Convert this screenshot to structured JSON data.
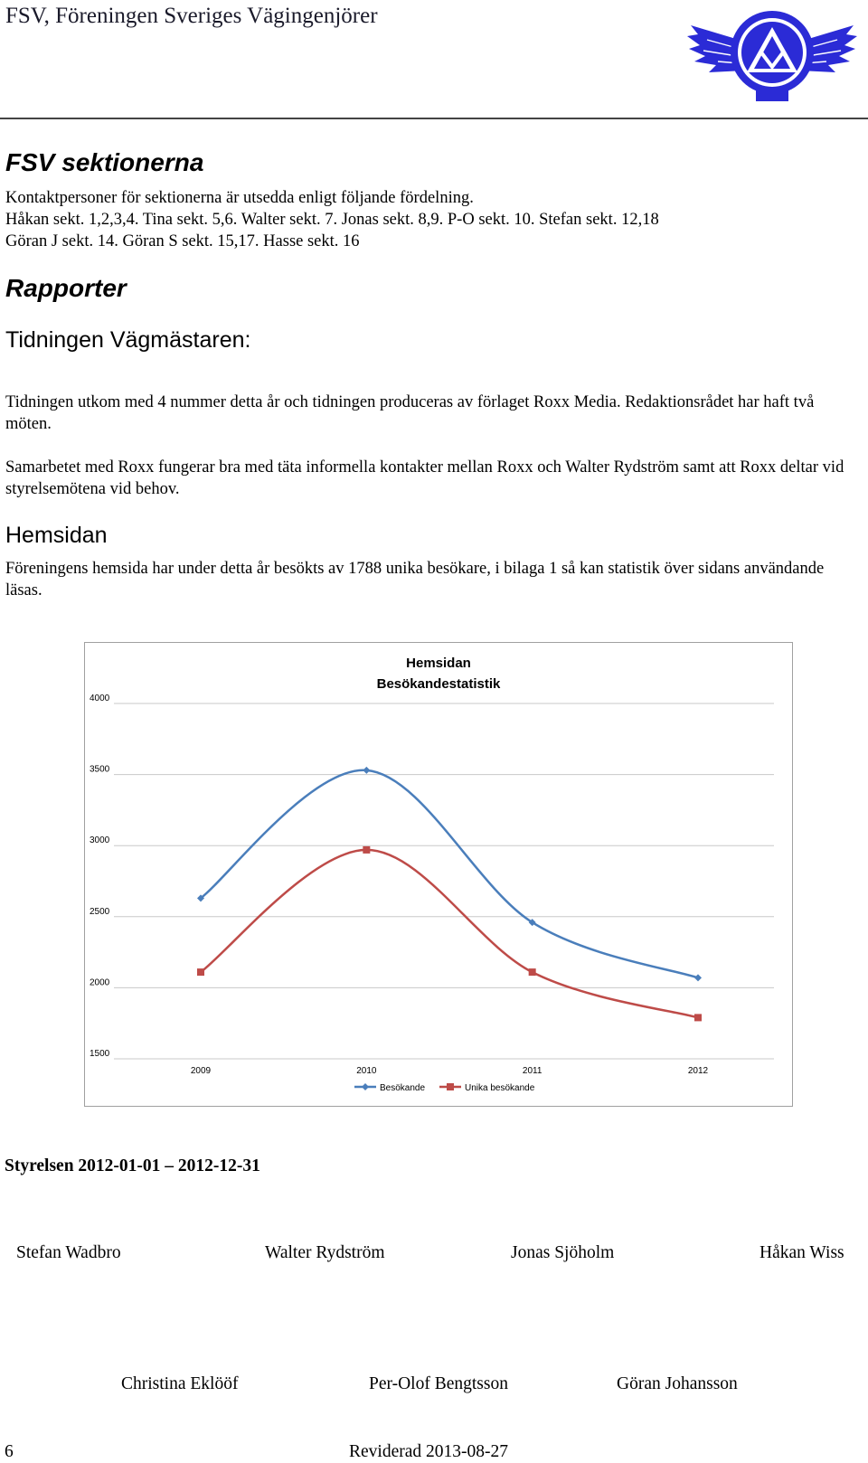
{
  "header": {
    "title": "FSV, Föreningen Sveriges Vägingenjörer"
  },
  "sections": {
    "heading": "FSV sektionerna",
    "lines": [
      "Kontaktpersoner för sektionerna är utsedda enligt följande fördelning.",
      "Håkan sekt. 1,2,3,4. Tina sekt. 5,6. Walter sekt. 7. Jonas sekt. 8,9. P-O sekt. 10. Stefan sekt. 12,18",
      "Göran J sekt. 14. Göran S sekt. 15,17. Hasse sekt. 16"
    ]
  },
  "rapporter": {
    "heading": "Rapporter",
    "subheading": "Tidningen Vägmästaren:",
    "para1": "Tidningen utkom med 4 nummer detta år och tidningen produceras av förlaget Roxx Media. Redaktionsrådet har haft två möten.",
    "para2": "Samarbetet med Roxx fungerar bra med täta informella kontakter mellan Roxx och Walter Rydström samt att Roxx deltar vid styrelsemötena vid behov."
  },
  "hemsidan": {
    "heading": "Hemsidan",
    "para": "Föreningens hemsida har under detta år besökts av 1788 unika besökare, i bilaga 1 så kan statistik över sidans användande läsas."
  },
  "chart_data": {
    "type": "line",
    "title": "Hemsidan",
    "subtitle": "Besökandestatistik",
    "categories": [
      "2009",
      "2010",
      "2011",
      "2012"
    ],
    "series": [
      {
        "name": "Besökande",
        "values": [
          2630,
          3530,
          2460,
          2070
        ],
        "color": "#4a7ebb"
      },
      {
        "name": "Unika besökande",
        "values": [
          2110,
          2970,
          2110,
          1790
        ],
        "color": "#be4b48"
      }
    ],
    "ylim": [
      1500,
      4000
    ],
    "yticks": [
      "4000",
      "3500",
      "3000",
      "2500",
      "2000",
      "1500"
    ],
    "grid": true,
    "legend": "bottom"
  },
  "board": {
    "heading": "Styrelsen 2012-01-01 – 2012-12-31",
    "row1": [
      "Stefan Wadbro",
      "Walter Rydström",
      "Jonas Sjöholm",
      "Håkan Wiss"
    ],
    "row2": [
      "Christina Eklööf",
      "Per-Olof Bengtsson",
      "Göran Johansson"
    ]
  },
  "footer": {
    "page_number": "6",
    "revised": "Reviderad 2013-08-27"
  },
  "logo": {
    "icon": "fsv-winged-emblem-icon",
    "color": "#2b2bd6"
  }
}
